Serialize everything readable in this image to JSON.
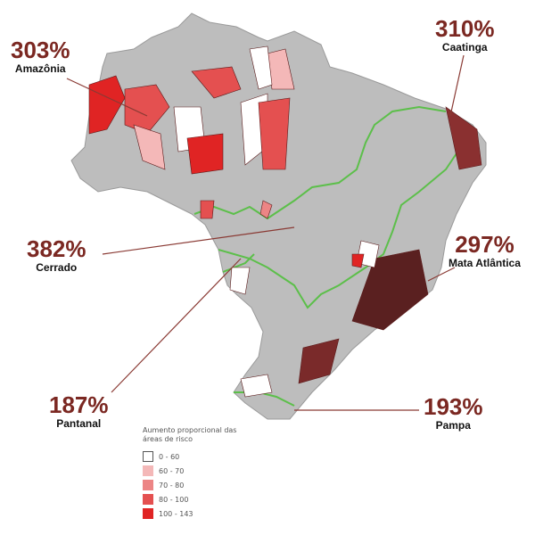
{
  "biomes": [
    {
      "pct": "303%",
      "name": "Amazônia"
    },
    {
      "pct": "310%",
      "name": "Caatinga"
    },
    {
      "pct": "382%",
      "name": "Cerrado"
    },
    {
      "pct": "297%",
      "name": "Mata Atlântica"
    },
    {
      "pct": "187%",
      "name": "Pantanal"
    },
    {
      "pct": "193%",
      "name": "Pampa"
    }
  ],
  "legend": {
    "title": "Aumento proporcional das áreas de risco",
    "items": [
      {
        "label": "0 - 60",
        "color": "#ffffff"
      },
      {
        "label": "60 - 70",
        "color": "#f4b8b8"
      },
      {
        "label": "70 - 80",
        "color": "#ec8585"
      },
      {
        "label": "80 - 100",
        "color": "#e45050"
      },
      {
        "label": "100 - 143",
        "color": "#e02424"
      }
    ]
  },
  "colors": {
    "label": "#7b2822",
    "map": "#b8b8b8",
    "border": "#5cbf4a"
  }
}
